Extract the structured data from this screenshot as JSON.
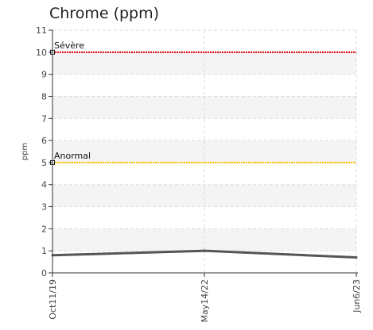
{
  "chart_data": {
    "type": "line",
    "title": "Chrome (ppm)",
    "xlabel": "",
    "ylabel": "ppm",
    "ylim": [
      0,
      11
    ],
    "y_ticks": [
      "0",
      "1",
      "2",
      "3",
      "4",
      "5",
      "6",
      "7",
      "8",
      "9",
      "10",
      "11"
    ],
    "categories": [
      "Oct11/19",
      "May14/22",
      "Jun6/23"
    ],
    "series": [
      {
        "values": [
          0.8,
          1.0,
          0.7
        ],
        "color": "#555555"
      }
    ],
    "thresholds": [
      {
        "label": "Anormal",
        "value": 5,
        "color": "#f2c200"
      },
      {
        "label": "Sévère",
        "value": 10,
        "color": "#e00000"
      }
    ],
    "grid": true,
    "legend": "none"
  }
}
